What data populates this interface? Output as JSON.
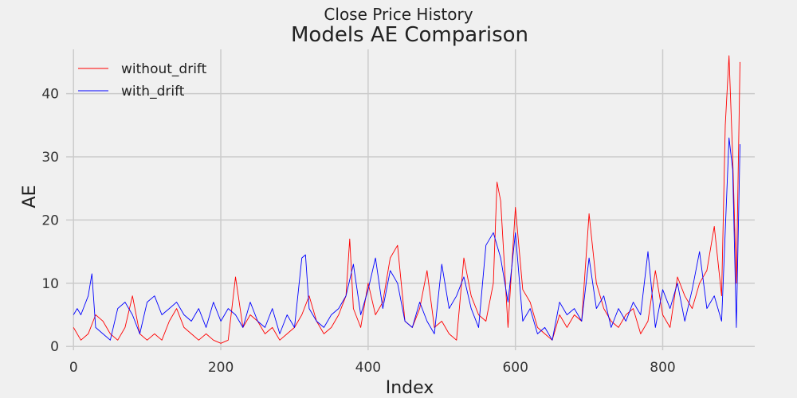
{
  "chart_data": {
    "type": "line",
    "suptitle": "Close Price History",
    "title": "Models AE Comparison",
    "xlabel": "Index",
    "ylabel": "AE",
    "xlim": [
      -10,
      925
    ],
    "ylim": [
      -0.6,
      47
    ],
    "xticks": [
      0,
      200,
      400,
      600,
      800
    ],
    "yticks": [
      0,
      10,
      20,
      30,
      40
    ],
    "grid": true,
    "legend_position": "top-left",
    "series": [
      {
        "name": "without_drift",
        "color": "#ff0000",
        "x": [
          0,
          10,
          20,
          30,
          40,
          50,
          60,
          70,
          80,
          90,
          100,
          110,
          120,
          130,
          140,
          150,
          160,
          170,
          180,
          190,
          200,
          210,
          220,
          230,
          240,
          250,
          260,
          270,
          280,
          290,
          300,
          310,
          320,
          330,
          340,
          350,
          360,
          370,
          375,
          380,
          390,
          400,
          410,
          420,
          430,
          440,
          450,
          460,
          470,
          480,
          490,
          500,
          510,
          520,
          530,
          540,
          550,
          560,
          570,
          575,
          580,
          590,
          600,
          610,
          620,
          630,
          640,
          650,
          660,
          670,
          680,
          690,
          700,
          710,
          720,
          730,
          740,
          750,
          760,
          770,
          780,
          790,
          800,
          810,
          820,
          830,
          840,
          850,
          860,
          870,
          880,
          885,
          890,
          895,
          900,
          905
        ],
        "y": [
          3,
          1,
          2,
          5,
          4,
          2,
          1,
          3,
          8,
          2,
          1,
          2,
          1,
          4,
          6,
          3,
          2,
          1,
          2,
          1,
          0.5,
          1,
          11,
          3,
          5,
          4,
          2,
          3,
          1,
          2,
          3,
          5,
          8,
          4,
          2,
          3,
          5,
          8,
          17,
          6,
          3,
          10,
          5,
          7,
          14,
          16,
          4,
          3,
          6,
          12,
          3,
          4,
          2,
          1,
          14,
          8,
          5,
          4,
          10,
          26,
          23,
          3,
          22,
          9,
          7,
          3,
          2,
          1,
          5,
          3,
          5,
          4,
          21,
          10,
          6,
          4,
          3,
          5,
          6,
          2,
          4,
          12,
          5,
          3,
          11,
          8,
          6,
          10,
          12,
          19,
          8,
          35,
          46,
          30,
          10,
          45
        ]
      },
      {
        "name": "with_drift",
        "color": "#0000ff",
        "x": [
          0,
          5,
          10,
          20,
          25,
          30,
          40,
          50,
          60,
          70,
          80,
          90,
          100,
          110,
          120,
          130,
          140,
          150,
          160,
          170,
          180,
          190,
          200,
          210,
          220,
          230,
          240,
          250,
          260,
          270,
          280,
          290,
          300,
          310,
          315,
          320,
          330,
          340,
          350,
          360,
          370,
          380,
          390,
          400,
          410,
          420,
          430,
          440,
          450,
          460,
          470,
          480,
          490,
          500,
          510,
          520,
          530,
          540,
          550,
          560,
          570,
          580,
          590,
          600,
          610,
          620,
          630,
          640,
          650,
          660,
          670,
          680,
          690,
          700,
          710,
          720,
          730,
          740,
          750,
          760,
          770,
          780,
          790,
          800,
          810,
          820,
          830,
          840,
          850,
          860,
          870,
          880,
          890,
          895,
          900,
          905
        ],
        "y": [
          5,
          6,
          5,
          8,
          11.5,
          3,
          2,
          1,
          6,
          7,
          5,
          2,
          7,
          8,
          5,
          6,
          7,
          5,
          4,
          6,
          3,
          7,
          4,
          6,
          5,
          3,
          7,
          4,
          3,
          6,
          2,
          5,
          3,
          14,
          14.5,
          6,
          4,
          3,
          5,
          6,
          8,
          13,
          5,
          9,
          14,
          6,
          12,
          10,
          4,
          3,
          7,
          4,
          2,
          13,
          6,
          8,
          11,
          6,
          3,
          16,
          18,
          14,
          7,
          18,
          4,
          6,
          2,
          3,
          1,
          7,
          5,
          6,
          4,
          14,
          6,
          8,
          3,
          6,
          4,
          7,
          5,
          15,
          3,
          9,
          6,
          10,
          4,
          9,
          15,
          6,
          8,
          4,
          33,
          28,
          3,
          32
        ]
      }
    ]
  }
}
